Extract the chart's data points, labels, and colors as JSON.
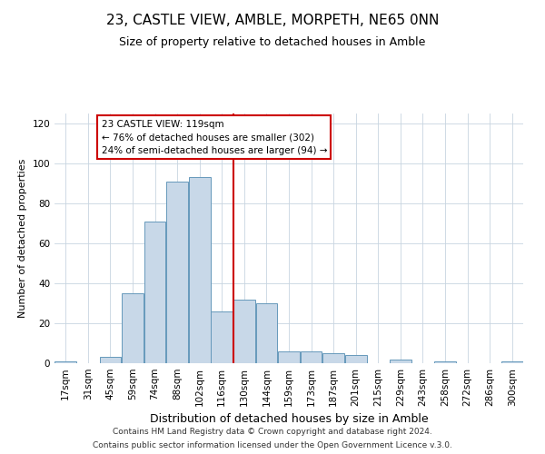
{
  "title": "23, CASTLE VIEW, AMBLE, MORPETH, NE65 0NN",
  "subtitle": "Size of property relative to detached houses in Amble",
  "xlabel": "Distribution of detached houses by size in Amble",
  "ylabel": "Number of detached properties",
  "bar_labels": [
    "17sqm",
    "31sqm",
    "45sqm",
    "59sqm",
    "74sqm",
    "88sqm",
    "102sqm",
    "116sqm",
    "130sqm",
    "144sqm",
    "159sqm",
    "173sqm",
    "187sqm",
    "201sqm",
    "215sqm",
    "229sqm",
    "243sqm",
    "258sqm",
    "272sqm",
    "286sqm",
    "300sqm"
  ],
  "bar_values": [
    1,
    0,
    3,
    35,
    71,
    91,
    93,
    26,
    32,
    30,
    6,
    6,
    5,
    4,
    0,
    2,
    0,
    1,
    0,
    0,
    1
  ],
  "bar_color": "#c8d8e8",
  "bar_edge_color": "#6699bb",
  "vline_x_idx": 7,
  "vline_color": "#cc0000",
  "annotation_title": "23 CASTLE VIEW: 119sqm",
  "annotation_line1": "← 76% of detached houses are smaller (302)",
  "annotation_line2": "24% of semi-detached houses are larger (94) →",
  "annotation_box_color": "#ffffff",
  "annotation_box_edge": "#cc0000",
  "ylim": [
    0,
    125
  ],
  "yticks": [
    0,
    20,
    40,
    60,
    80,
    100,
    120
  ],
  "footer1": "Contains HM Land Registry data © Crown copyright and database right 2024.",
  "footer2": "Contains public sector information licensed under the Open Government Licence v.3.0.",
  "bg_color": "#ffffff",
  "grid_color": "#c8d4e0",
  "title_fontsize": 11,
  "subtitle_fontsize": 9,
  "xlabel_fontsize": 9,
  "ylabel_fontsize": 8,
  "tick_fontsize": 7.5,
  "footer_fontsize": 6.5
}
